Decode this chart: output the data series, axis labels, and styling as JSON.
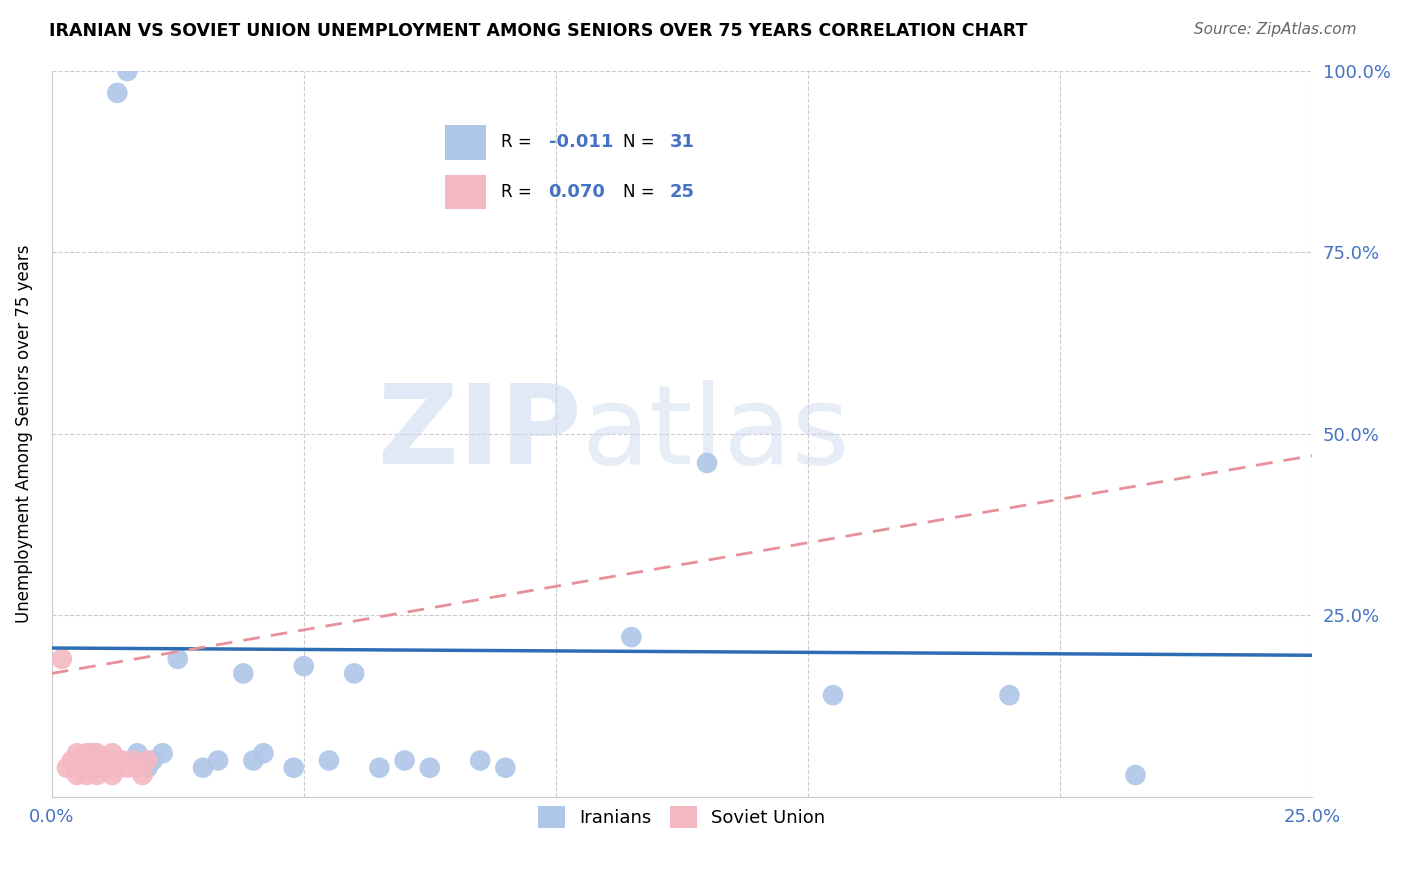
{
  "title": "IRANIAN VS SOVIET UNION UNEMPLOYMENT AMONG SENIORS OVER 75 YEARS CORRELATION CHART",
  "source": "Source: ZipAtlas.com",
  "ylabel": "Unemployment Among Seniors over 75 years",
  "xlim": [
    0.0,
    0.25
  ],
  "ylim": [
    0.0,
    1.0
  ],
  "xticks": [
    0.0,
    0.05,
    0.1,
    0.15,
    0.2,
    0.25
  ],
  "xticklabels": [
    "0.0%",
    "",
    "",
    "",
    "",
    "25.0%"
  ],
  "yticks": [
    0.0,
    0.25,
    0.5,
    0.75,
    1.0
  ],
  "yticklabels": [
    "",
    "25.0%",
    "50.0%",
    "75.0%",
    "100.0%"
  ],
  "iranian_R": -0.011,
  "iranian_N": 31,
  "soviet_R": 0.07,
  "soviet_N": 25,
  "iranian_color": "#aec6e8",
  "soviet_color": "#f4b8c1",
  "trendline_iranian_color": "#2e6db4",
  "trendline_soviet_color": "#e8909a",
  "watermark_zip": "ZIP",
  "watermark_atlas": "atlas",
  "iranian_points_x": [
    0.005,
    0.008,
    0.01,
    0.012,
    0.013,
    0.015,
    0.016,
    0.017,
    0.019,
    0.02,
    0.022,
    0.025,
    0.03,
    0.033,
    0.038,
    0.04,
    0.042,
    0.048,
    0.05,
    0.055,
    0.06,
    0.065,
    0.07,
    0.075,
    0.085,
    0.09,
    0.115,
    0.13,
    0.155,
    0.19,
    0.215
  ],
  "iranian_points_y": [
    0.05,
    0.06,
    0.04,
    0.05,
    0.97,
    1.0,
    0.05,
    0.06,
    0.04,
    0.05,
    0.06,
    0.19,
    0.04,
    0.05,
    0.17,
    0.05,
    0.06,
    0.04,
    0.18,
    0.05,
    0.17,
    0.04,
    0.05,
    0.04,
    0.05,
    0.04,
    0.22,
    0.46,
    0.14,
    0.14,
    0.03
  ],
  "soviet_points_x": [
    0.002,
    0.003,
    0.004,
    0.005,
    0.005,
    0.006,
    0.006,
    0.007,
    0.007,
    0.008,
    0.008,
    0.009,
    0.009,
    0.01,
    0.01,
    0.011,
    0.012,
    0.012,
    0.013,
    0.014,
    0.015,
    0.016,
    0.017,
    0.018,
    0.019
  ],
  "soviet_points_y": [
    0.19,
    0.04,
    0.05,
    0.03,
    0.06,
    0.04,
    0.05,
    0.03,
    0.06,
    0.04,
    0.05,
    0.03,
    0.06,
    0.04,
    0.05,
    0.04,
    0.03,
    0.06,
    0.04,
    0.05,
    0.04,
    0.05,
    0.04,
    0.03,
    0.05
  ],
  "iranian_trend_x": [
    0.0,
    0.25
  ],
  "iranian_trend_y": [
    0.205,
    0.195
  ],
  "soviet_trend_x": [
    0.0,
    0.25
  ],
  "soviet_trend_y": [
    0.17,
    0.47
  ]
}
